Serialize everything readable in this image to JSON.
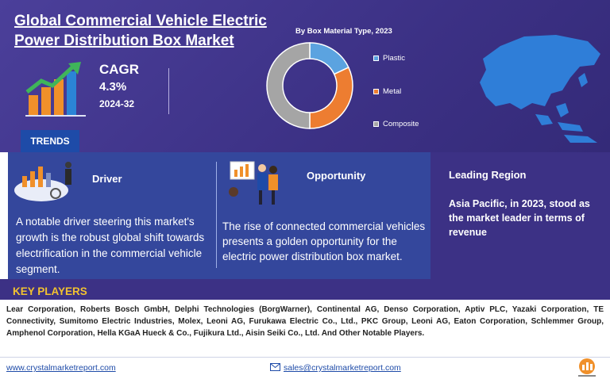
{
  "header": {
    "title": "Global Commercial Vehicle Electric Power Distribution Box Market"
  },
  "cagr": {
    "label": "CAGR",
    "value": "4.3%",
    "period": "2024-32"
  },
  "chart_data": {
    "type": "pie",
    "title": "By Box Material Type, 2023",
    "categories": [
      "Plastic",
      "Metal",
      "Composite"
    ],
    "values": [
      18,
      32,
      50
    ],
    "colors": [
      "#5ba3e0",
      "#ed7d31",
      "#a5a5a5"
    ],
    "legend_position": "right"
  },
  "trends": {
    "tab_label": "TRENDS",
    "driver": {
      "label": "Driver",
      "text": "A notable driver steering this market's growth is the robust global shift towards electrification in the commercial vehicle segment."
    },
    "opportunity": {
      "label": "Opportunity",
      "text": "The rise of connected commercial vehicles presents a golden opportunity for the electric power distribution box market."
    }
  },
  "region": {
    "title": "Leading Region",
    "text": "Asia Pacific, in 2023, stood as the market leader in terms of revenue"
  },
  "key_players": {
    "heading": "KEY PLAYERS",
    "text": "Lear Corporation, Roberts Bosch GmbH, Delphi Technologies (BorgWarner), Continental AG, Denso Corporation, Aptiv PLC, Yazaki Corporation, TE Connectivity, Sumitomo Electric Industries, Molex, Leoni AG, Furukawa Electric Co., Ltd., PKC Group, Leoni AG, Eaton Corporation, Schlemmer Group, Amphenol Corporation, Hella KGaA Hueck & Co., Fujikura Ltd., Aisin Seiki Co., Ltd. And Other Notable Players."
  },
  "footer": {
    "website": "www.crystalmarketreport.com",
    "email": "sales@crystalmarketreport.com"
  },
  "icons": [
    "bar-chart-growth-icon",
    "mail-icon",
    "company-logo-icon",
    "asia-map-icon"
  ],
  "colors": {
    "banner": "#3c3185",
    "panel": "#34479c",
    "tab": "#1e4ba8",
    "heading_accent": "#f2c230"
  }
}
